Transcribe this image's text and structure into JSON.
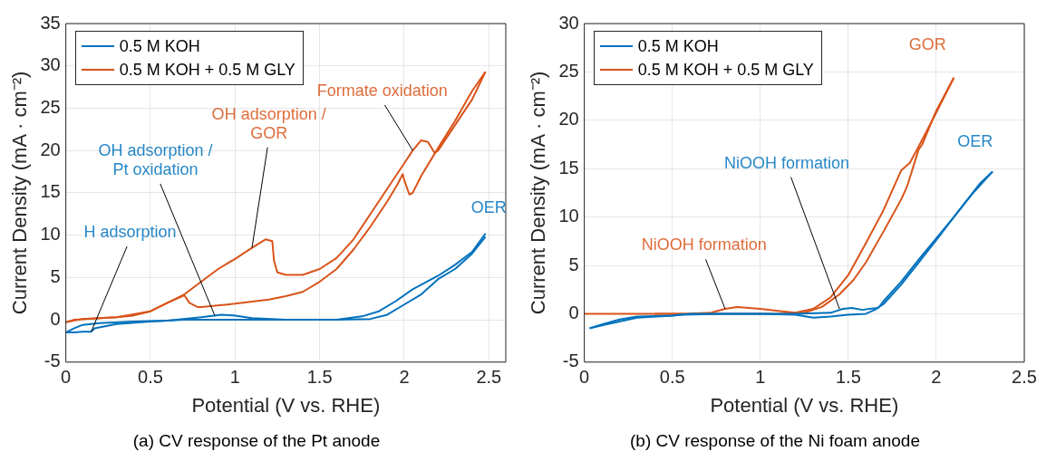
{
  "chart_data": [
    {
      "type": "line",
      "title": "(a) CV response of the Pt anode",
      "xlabel": "Potential (V vs. RHE)",
      "ylabel": "Current Density (mA · cm⁻²)",
      "xlim": [
        0,
        2.6
      ],
      "ylim": [
        -5,
        35
      ],
      "xticks": [
        0,
        0.5,
        1,
        1.5,
        2,
        2.5
      ],
      "yticks": [
        -5,
        0,
        5,
        10,
        15,
        20,
        25,
        30,
        35
      ],
      "grid": true,
      "legend": "top left",
      "marker": "none",
      "line_style": "solid",
      "series": [
        {
          "name": "0.5 M KOH",
          "color": "#0072bd",
          "x": [
            0,
            0.05,
            0.1,
            0.2,
            0.4,
            0.6,
            0.8,
            0.92,
            1.0,
            1.1,
            1.3,
            1.6,
            1.75,
            1.85,
            1.95,
            2.05,
            2.2,
            2.3,
            2.4,
            2.48
          ],
          "values": [
            -1.5,
            -1.0,
            -0.6,
            -0.4,
            -0.2,
            -0.1,
            0.3,
            0.6,
            0.5,
            0.2,
            0,
            0,
            0.4,
            1.0,
            2.2,
            3.6,
            5.2,
            6.5,
            8.0,
            10.2
          ]
        },
        {
          "color": "#0072bd",
          "x": [
            0,
            0.05,
            0.1,
            0.15,
            0.17,
            0.3,
            0.5,
            0.7,
            1.0,
            1.3,
            1.6,
            1.8,
            1.9,
            2.0,
            2.1,
            2.2,
            2.3,
            2.4,
            2.48
          ],
          "values": [
            -1.5,
            -1.5,
            -1.4,
            -1.4,
            -1.0,
            -0.5,
            -0.2,
            0,
            0,
            0,
            0,
            0.1,
            0.6,
            1.8,
            3.0,
            4.8,
            6.0,
            7.8,
            9.8
          ]
        },
        {
          "name": "0.5 M KOH + 0.5 M GLY",
          "color": "#d95319",
          "x": [
            0,
            0.05,
            0.2,
            0.3,
            0.4,
            0.5,
            0.6,
            0.7,
            0.8,
            0.9,
            1.0,
            1.1,
            1.18,
            1.22,
            1.23,
            1.25,
            1.3,
            1.4,
            1.5,
            1.6,
            1.7,
            1.8,
            1.9,
            2.0,
            2.05,
            2.1,
            2.14,
            2.18,
            2.2,
            2.3,
            2.4,
            2.48
          ],
          "values": [
            -0.3,
            0,
            0.2,
            0.3,
            0.5,
            1.0,
            2.0,
            3.0,
            4.5,
            6.0,
            7.2,
            8.5,
            9.5,
            9.3,
            7,
            5.6,
            5.3,
            5.3,
            6.0,
            7.3,
            9.5,
            12.5,
            15.5,
            18.5,
            20,
            21.2,
            21,
            19.7,
            20,
            23,
            26,
            29.3
          ]
        },
        {
          "color": "#d95319",
          "x": [
            0,
            0.1,
            0.3,
            0.5,
            0.6,
            0.7,
            0.73,
            0.78,
            0.8,
            1.0,
            1.2,
            1.3,
            1.4,
            1.5,
            1.6,
            1.7,
            1.8,
            1.9,
            1.96,
            1.99,
            2.0,
            2.03,
            2.05,
            2.1,
            2.2,
            2.3,
            2.4,
            2.48
          ],
          "values": [
            -0.3,
            0.1,
            0.3,
            1.0,
            2.0,
            2.9,
            2.0,
            1.5,
            1.5,
            1.9,
            2.4,
            2.8,
            3.3,
            4.5,
            6.0,
            8.3,
            11,
            14,
            16,
            17.2,
            16.5,
            14.8,
            15,
            17,
            20.3,
            23.5,
            27,
            29.3
          ]
        }
      ],
      "annotations": [
        {
          "text": "H adsorption",
          "x": 0.15,
          "y": -1.4
        },
        {
          "text": "OH adsorption /\nPt oxidation",
          "x": 0.88,
          "y": 0.5
        },
        {
          "text": "OH adsorption /\nGOR",
          "x": 1.1,
          "y": 8.5
        },
        {
          "text": "Formate oxidation",
          "x": 2.05,
          "y": 20
        },
        {
          "text": "OER",
          "x": 2.48,
          "y": 10.2
        }
      ]
    },
    {
      "type": "line",
      "title": "(b) CV response of the Ni foam anode",
      "xlabel": "Potential (V vs. RHE)",
      "ylabel": "Current Density (mA · cm⁻²)",
      "xlim": [
        0,
        2.5
      ],
      "ylim": [
        -5,
        30
      ],
      "xticks": [
        0,
        0.5,
        1,
        1.5,
        2,
        2.5
      ],
      "yticks": [
        -5,
        0,
        5,
        10,
        15,
        20,
        25,
        30
      ],
      "grid": true,
      "legend": "top left",
      "marker": "none",
      "line_style": "solid",
      "series": [
        {
          "name": "0.5 M KOH",
          "color": "#0072bd",
          "x": [
            0.03,
            0.1,
            0.2,
            0.3,
            0.5,
            0.6,
            1.0,
            1.2,
            1.3,
            1.4,
            1.5,
            1.6,
            1.65,
            1.7,
            1.8,
            1.9,
            2.0,
            2.1,
            2.2,
            2.32
          ],
          "values": [
            -1.5,
            -1.1,
            -0.6,
            -0.3,
            -0.2,
            0,
            0,
            -0.1,
            -0.4,
            -0.3,
            -0.1,
            0,
            0.4,
            1.0,
            3.0,
            5.3,
            7.6,
            10,
            12.3,
            14.7
          ]
        },
        {
          "color": "#0072bd",
          "x": [
            0.03,
            0.1,
            0.3,
            0.5,
            0.55,
            0.8,
            1.2,
            1.4,
            1.47,
            1.52,
            1.58,
            1.62,
            1.67,
            1.7,
            1.8,
            1.9,
            2.0,
            2.1,
            2.25,
            2.32
          ],
          "values": [
            -1.5,
            -1.2,
            -0.4,
            -0.2,
            -0.1,
            0,
            0,
            0.1,
            0.5,
            0.6,
            0.4,
            0.5,
            0.6,
            1.3,
            3.3,
            5.6,
            7.8,
            10,
            13.5,
            14.7
          ]
        },
        {
          "name": "0.5 M KOH + 0.5 M GLY",
          "color": "#d95319",
          "x": [
            0,
            0.3,
            0.6,
            0.72,
            0.8,
            0.87,
            1.0,
            1.1,
            1.2,
            1.3,
            1.4,
            1.5,
            1.6,
            1.7,
            1.8,
            1.85,
            1.9,
            2.0,
            2.1
          ],
          "values": [
            0,
            0,
            0,
            0.1,
            0.5,
            0.7,
            0.5,
            0.3,
            0.1,
            0.5,
            1.7,
            4.0,
            7.3,
            10.7,
            14.8,
            15.6,
            17.3,
            20.8,
            24.4
          ]
        },
        {
          "color": "#d95319",
          "x": [
            0.4,
            0.7,
            0.9,
            1.1,
            1.25,
            1.35,
            1.45,
            1.53,
            1.6,
            1.7,
            1.8,
            1.83,
            1.84,
            1.9,
            1.92,
            2.0,
            2.1
          ],
          "values": [
            0,
            0,
            0,
            0,
            0.1,
            0.7,
            2.0,
            3.5,
            5.3,
            8.5,
            11.8,
            13,
            13.5,
            17,
            17.5,
            21,
            24.4
          ]
        }
      ],
      "annotations": [
        {
          "text": "NiOOH formation",
          "x": 0.8,
          "y": 0.5
        },
        {
          "text": "NiOOH formation",
          "x": 1.45,
          "y": 0.5
        },
        {
          "text": "GOR",
          "x": 2.1,
          "y": 24.4
        },
        {
          "text": "OER",
          "x": 2.32,
          "y": 14.7
        }
      ]
    }
  ]
}
